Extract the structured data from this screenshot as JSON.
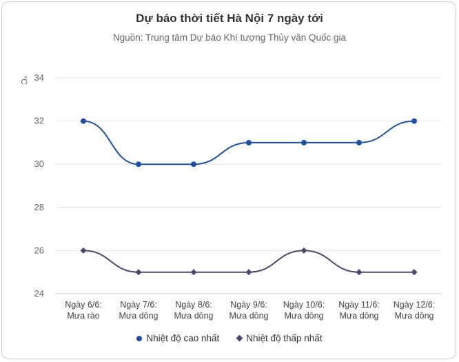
{
  "chart_data": {
    "type": "line",
    "title": "Dự báo thời tiết Hà Nội 7 ngày tới",
    "subtitle": "Nguồn: Trung tâm Dự báo Khí tượng Thủy văn Quốc gia",
    "ylabel": "°C",
    "ylim": [
      24,
      34
    ],
    "yticks": [
      24,
      26,
      28,
      30,
      32,
      34
    ],
    "grid": true,
    "legend_position": "bottom",
    "categories": [
      [
        "Ngày 6/6:",
        "Mưa rào"
      ],
      [
        "Ngày 7/6:",
        "Mưa dông"
      ],
      [
        "Ngày 8/6:",
        "Mưa dông"
      ],
      [
        "Ngày 9/6:",
        "Mưa dông"
      ],
      [
        "Ngày 10/6:",
        "Mưa dông"
      ],
      [
        "Ngày 11/6:",
        "Mưa dông"
      ],
      [
        "Ngày 12/6:",
        "Mưa dông"
      ]
    ],
    "series": [
      {
        "name": "Nhiệt độ cao nhất",
        "values": [
          32,
          30,
          30,
          31,
          31,
          31,
          32
        ],
        "color": "#1f4fa0",
        "marker": "circle"
      },
      {
        "name": "Nhiệt độ thấp nhất",
        "values": [
          26,
          25,
          25,
          25,
          26,
          25,
          25
        ],
        "color": "#4a4a6a",
        "marker": "diamond"
      }
    ]
  }
}
